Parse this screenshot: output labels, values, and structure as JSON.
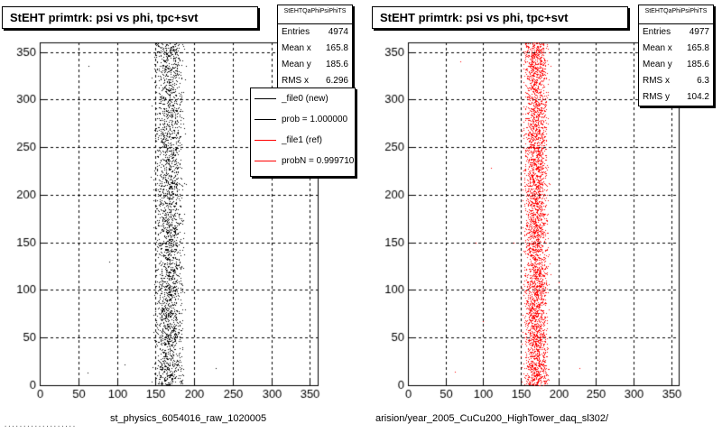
{
  "colors": {
    "left_points": "#000000",
    "right_points": "#ff0000",
    "ref_line": "#cc0000"
  },
  "left_panel": {
    "title": "StEHT primtrk: psi vs phi, tpc+svt",
    "stats": {
      "name": "StEHTQaPhiPsiPhiTS",
      "rows": [
        {
          "label": "Entries",
          "value": "4974"
        },
        {
          "label": "Mean x",
          "value": "165.8"
        },
        {
          "label": "Mean y",
          "value": "185.6"
        },
        {
          "label": "RMS x",
          "value": "6.296"
        }
      ]
    },
    "legend": [
      {
        "label": "_file0 (new)",
        "color": "#000000"
      },
      {
        "label": "prob = 1.000000",
        "color": "#000000"
      },
      {
        "label": "_file1 (ref)",
        "color": "#ff0000"
      },
      {
        "label": "probN = 0.999710",
        "color": "#ff0000"
      }
    ],
    "file_label": "st_physics_6054016_raw_1020005"
  },
  "right_panel": {
    "title": "StEHT primtrk: psi vs phi, tpc+svt",
    "stats": {
      "name": "StEHTQaPhiPsiPhiTS",
      "rows": [
        {
          "label": "Entries",
          "value": "4977"
        },
        {
          "label": "Mean x",
          "value": "165.8"
        },
        {
          "label": "Mean y",
          "value": "185.6"
        },
        {
          "label": "RMS x",
          "value": "6.3"
        },
        {
          "label": "RMS y",
          "value": "104.2"
        }
      ]
    },
    "file_label": "arision/year_2005_CuCu200_HighTower_daq_sl302/"
  },
  "footer_text": "...................",
  "chart_data": [
    {
      "type": "scatter",
      "title": "StEHT primtrk: psi vs phi, tpc+svt",
      "xlim": [
        0,
        360
      ],
      "ylim": [
        0,
        360
      ],
      "x_ticks": [
        0,
        50,
        100,
        150,
        200,
        250,
        300,
        350
      ],
      "y_ticks": [
        0,
        50,
        100,
        150,
        200,
        250,
        300,
        350
      ],
      "grid": true,
      "legend_position": "top-right",
      "series": [
        {
          "name": "_file0 (new)",
          "color": "#000000",
          "entries": 4974,
          "mean_x": 165.8,
          "mean_y": 185.6,
          "rms_x": 6.296,
          "band_x": [
            150,
            185
          ],
          "outliers": [
            [
              63,
              335
            ],
            [
              62,
              13
            ],
            [
              100,
              192
            ],
            [
              100,
              62
            ],
            [
              110,
              22
            ],
            [
              140,
              300
            ],
            [
              90,
              130
            ],
            [
              228,
              18
            ]
          ]
        }
      ]
    },
    {
      "type": "scatter",
      "title": "StEHT primtrk: psi vs phi, tpc+svt",
      "xlim": [
        0,
        360
      ],
      "ylim": [
        0,
        360
      ],
      "x_ticks": [
        0,
        50,
        100,
        150,
        200,
        250,
        300,
        350
      ],
      "y_ticks": [
        0,
        50,
        100,
        150,
        200,
        250,
        300,
        350
      ],
      "grid": true,
      "series": [
        {
          "name": "_file1 (ref)",
          "color": "#ff0000",
          "entries": 4977,
          "mean_x": 165.8,
          "mean_y": 185.6,
          "rms_x": 6.3,
          "rms_y": 104.2,
          "band_x": [
            155,
            185
          ],
          "outliers": [
            [
              70,
              340
            ],
            [
              62,
              14
            ],
            [
              100,
              67
            ],
            [
              110,
              228
            ],
            [
              140,
              150
            ],
            [
              200,
              108
            ],
            [
              228,
              18
            ],
            [
              90,
              150
            ]
          ]
        }
      ]
    }
  ]
}
